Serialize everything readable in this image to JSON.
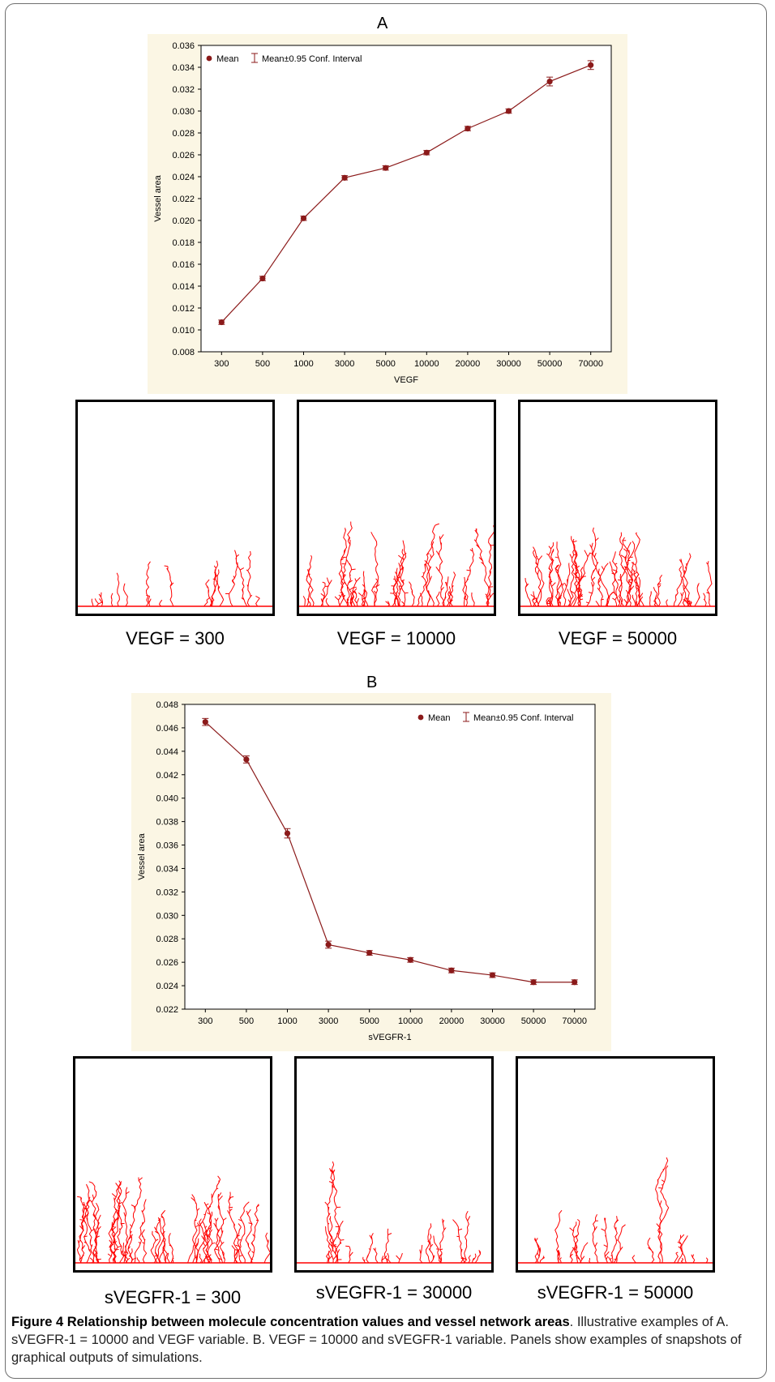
{
  "figure": {
    "caption_title": "Figure 4 Relationship between molecule concentration values and vessel network areas",
    "caption_text": ". Illustrative examples of A. sVEGFR-1 = 10000 and VEGF variable. B. VEGF = 10000 and sVEGFR-1 variable. Panels show examples of snapshots of graphical outputs of simulations."
  },
  "panel_a": {
    "letter": "A",
    "snapshots": [
      "VEGF = 300",
      "VEGF = 10000",
      "VEGF = 50000"
    ]
  },
  "panel_b": {
    "letter": "B",
    "snapshots": [
      "sVEGFR-1 = 300",
      "sVEGFR-1 = 30000",
      "sVEGFR-1 = 50000"
    ]
  },
  "colors": {
    "series": "#8b1a1a",
    "plot_bg": "#fbf6e4",
    "vessel": "#ff0000"
  },
  "chart_data": [
    {
      "type": "line",
      "xlabel": "VEGF",
      "ylabel": "Vessel area",
      "categories": [
        "300",
        "500",
        "1000",
        "3000",
        "5000",
        "10000",
        "20000",
        "30000",
        "50000",
        "70000"
      ],
      "series": [
        {
          "name": "Mean",
          "values": [
            0.0107,
            0.0147,
            0.0202,
            0.0239,
            0.0248,
            0.0262,
            0.0284,
            0.03,
            0.0327,
            0.0342
          ],
          "ci": [
            0.0002,
            0.0002,
            0.0002,
            0.0002,
            0.0002,
            0.0002,
            0.0002,
            0.0002,
            0.0004,
            0.0004
          ]
        }
      ],
      "legend": [
        "Mean",
        "Mean±0.95 Conf. Interval"
      ],
      "legend_position": "top-left",
      "ylim": [
        0.008,
        0.036
      ],
      "yticks": [
        "0.008",
        "0.010",
        "0.012",
        "0.014",
        "0.016",
        "0.018",
        "0.020",
        "0.022",
        "0.024",
        "0.026",
        "0.028",
        "0.030",
        "0.032",
        "0.034",
        "0.036"
      ],
      "grid": false
    },
    {
      "type": "line",
      "xlabel": "sVEGFR-1",
      "ylabel": "Vessel area",
      "categories": [
        "300",
        "500",
        "1000",
        "3000",
        "5000",
        "10000",
        "20000",
        "30000",
        "50000",
        "70000"
      ],
      "series": [
        {
          "name": "Mean",
          "values": [
            0.0465,
            0.0433,
            0.037,
            0.0275,
            0.0268,
            0.0262,
            0.0253,
            0.0249,
            0.0243,
            0.0243
          ],
          "ci": [
            0.0003,
            0.0003,
            0.0004,
            0.0003,
            0.0002,
            0.0002,
            0.0002,
            0.0002,
            0.0002,
            0.0002
          ]
        }
      ],
      "legend": [
        "Mean",
        "Mean±0.95 Conf. Interval"
      ],
      "legend_position": "top-right",
      "ylim": [
        0.022,
        0.048
      ],
      "yticks": [
        "0.022",
        "0.024",
        "0.026",
        "0.028",
        "0.030",
        "0.032",
        "0.034",
        "0.036",
        "0.038",
        "0.040",
        "0.042",
        "0.044",
        "0.046",
        "0.048"
      ],
      "grid": false
    }
  ]
}
